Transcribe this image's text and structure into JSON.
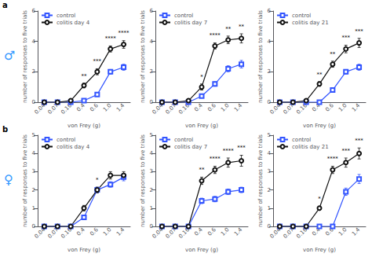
{
  "chart_data": [
    {
      "type": "line",
      "categories": [
        "0.04",
        "0.07",
        "0.16",
        "0.4",
        "0.6",
        "1.0",
        "1.4"
      ],
      "xlabel": "von Frey (g)",
      "ylabel": "number of responses to five trials",
      "ylim": [
        0,
        6
      ],
      "yticks": [
        0,
        2,
        4,
        6
      ],
      "grid": false,
      "legend": "upper left",
      "series": [
        {
          "name": "control",
          "color": "#3355ff",
          "marker": "square",
          "values": [
            0.0,
            0.0,
            0.0,
            0.1,
            0.5,
            2.0,
            2.3
          ],
          "error": [
            0.0,
            0.0,
            0.0,
            0.05,
            0.1,
            0.15,
            0.2
          ]
        },
        {
          "name": "colitis day 4",
          "color": "#111111",
          "marker": "circle",
          "values": [
            0.0,
            0.0,
            0.1,
            1.1,
            2.0,
            3.5,
            3.8
          ],
          "error": [
            0.0,
            0.0,
            0.05,
            0.15,
            0.2,
            0.2,
            0.25
          ]
        }
      ],
      "annotations": [
        {
          "text": "a"
        },
        {
          "text": "♂",
          "color": "#3399ff"
        },
        {
          "x": "0.4",
          "series": "colitis day 4",
          "text": "**"
        },
        {
          "x": "0.6",
          "series": "colitis day 4",
          "text": "***"
        },
        {
          "x": "1.0",
          "series": "colitis day 4",
          "text": "****"
        },
        {
          "x": "1.4",
          "series": "colitis day 4",
          "text": "****"
        }
      ]
    },
    {
      "type": "line",
      "categories": [
        "0.04",
        "0.07",
        "0.16",
        "0.4",
        "0.6",
        "1.0",
        "1.4"
      ],
      "xlabel": "von Frey (g)",
      "ylabel": "number of responses to five trials",
      "ylim": [
        0,
        6
      ],
      "yticks": [
        0,
        2,
        4,
        6
      ],
      "grid": false,
      "legend": "upper left",
      "series": [
        {
          "name": "control",
          "color": "#3355ff",
          "marker": "square",
          "values": [
            0.0,
            0.0,
            0.0,
            0.4,
            1.2,
            2.2,
            2.5
          ],
          "error": [
            0.0,
            0.0,
            0.0,
            0.1,
            0.15,
            0.2,
            0.25
          ]
        },
        {
          "name": "colitis day 7",
          "color": "#111111",
          "marker": "circle",
          "values": [
            0.0,
            0.0,
            0.1,
            1.0,
            3.7,
            4.1,
            4.2
          ],
          "error": [
            0.0,
            0.0,
            0.05,
            0.2,
            0.2,
            0.25,
            0.3
          ]
        }
      ],
      "annotations": [
        {
          "x": "0.4",
          "series": "colitis day 7",
          "text": "*"
        },
        {
          "x": "0.6",
          "series": "colitis day 7",
          "text": "****"
        },
        {
          "x": "1.0",
          "series": "colitis day 7",
          "text": "**"
        },
        {
          "x": "1.4",
          "series": "colitis day 7",
          "text": "**"
        }
      ]
    },
    {
      "type": "line",
      "categories": [
        "0.04",
        "0.07",
        "0.16",
        "0.4",
        "0.6",
        "1.0",
        "1.4"
      ],
      "xlabel": "von Frey (g)",
      "ylabel": "number of responses to five trials",
      "ylim": [
        0,
        6
      ],
      "yticks": [
        0,
        2,
        4,
        6
      ],
      "grid": false,
      "legend": "upper left",
      "series": [
        {
          "name": "control",
          "color": "#3355ff",
          "marker": "square",
          "values": [
            0.0,
            0.0,
            0.0,
            0.0,
            0.8,
            2.0,
            2.3
          ],
          "error": [
            0.0,
            0.0,
            0.0,
            0.0,
            0.1,
            0.15,
            0.2
          ]
        },
        {
          "name": "colitis day 21",
          "color": "#111111",
          "marker": "circle",
          "values": [
            0.0,
            0.0,
            0.1,
            1.2,
            2.5,
            3.5,
            3.9
          ],
          "error": [
            0.0,
            0.0,
            0.05,
            0.15,
            0.2,
            0.25,
            0.3
          ]
        }
      ],
      "annotations": [
        {
          "x": "0.4",
          "series": "colitis day 21",
          "text": "**"
        },
        {
          "x": "0.6",
          "series": "colitis day 21",
          "text": "**"
        },
        {
          "x": "1.0",
          "series": "colitis day 21",
          "text": "***"
        },
        {
          "x": "1.4",
          "series": "colitis day 21",
          "text": "***"
        }
      ]
    },
    {
      "type": "line",
      "categories": [
        "0.04",
        "0.07",
        "0.16",
        "0.4",
        "0.6",
        "1.0",
        "1.4"
      ],
      "xlabel": "von Frey (g)",
      "ylabel": "number of responses to five trials",
      "ylim": [
        0,
        5
      ],
      "yticks": [
        0,
        1,
        2,
        3,
        4,
        5
      ],
      "grid": false,
      "legend": "upper left",
      "series": [
        {
          "name": "control",
          "color": "#3355ff",
          "marker": "square",
          "values": [
            0.0,
            0.0,
            0.0,
            0.5,
            2.0,
            2.3,
            2.7
          ],
          "error": [
            0.0,
            0.0,
            0.0,
            0.1,
            0.15,
            0.15,
            0.2
          ]
        },
        {
          "name": "colitis day 4",
          "color": "#111111",
          "marker": "circle",
          "values": [
            0.0,
            0.0,
            0.0,
            1.0,
            2.0,
            2.8,
            2.8
          ],
          "error": [
            0.0,
            0.0,
            0.0,
            0.15,
            0.15,
            0.2,
            0.2
          ]
        }
      ],
      "annotations": [
        {
          "text": "b"
        },
        {
          "text": "♀",
          "color": "#3399ff"
        },
        {
          "x": "0.6",
          "series": "colitis day 4",
          "text": "*"
        }
      ]
    },
    {
      "type": "line",
      "categories": [
        "0.04",
        "0.07",
        "0.16",
        "0.4",
        "0.6",
        "1.0",
        "1.4"
      ],
      "xlabel": "von Frey (g)",
      "ylabel": "number of responses to five trials",
      "ylim": [
        0,
        5
      ],
      "yticks": [
        0,
        1,
        2,
        3,
        4,
        5
      ],
      "grid": false,
      "legend": "upper left",
      "series": [
        {
          "name": "control",
          "color": "#3355ff",
          "marker": "square",
          "values": [
            0.0,
            0.0,
            0.0,
            1.4,
            1.5,
            1.9,
            2.0
          ],
          "error": [
            0.0,
            0.0,
            0.0,
            0.15,
            0.15,
            0.15,
            0.15
          ]
        },
        {
          "name": "colitis day 7",
          "color": "#111111",
          "marker": "circle",
          "values": [
            0.0,
            0.0,
            0.0,
            2.5,
            3.1,
            3.5,
            3.6
          ],
          "error": [
            0.0,
            0.0,
            0.0,
            0.2,
            0.2,
            0.25,
            0.3
          ]
        }
      ],
      "annotations": [
        {
          "x": "0.4",
          "series": "colitis day 7",
          "text": "**"
        },
        {
          "x": "0.6",
          "series": "colitis day 7",
          "text": "****"
        },
        {
          "x": "1.0",
          "series": "colitis day 7",
          "text": "****"
        },
        {
          "x": "1.4",
          "series": "colitis day 7",
          "text": "***"
        }
      ]
    },
    {
      "type": "line",
      "categories": [
        "0.04",
        "0.07",
        "0.16",
        "0.4",
        "0.6",
        "1.0",
        "1.4"
      ],
      "xlabel": "von Frey (g)",
      "ylabel": "number of responses to five trials",
      "ylim": [
        0,
        5
      ],
      "yticks": [
        0,
        1,
        2,
        3,
        4,
        5
      ],
      "grid": false,
      "legend": "upper left",
      "series": [
        {
          "name": "control",
          "color": "#3355ff",
          "marker": "square",
          "values": [
            0.0,
            0.0,
            0.0,
            0.0,
            0.0,
            1.9,
            2.6
          ],
          "error": [
            0.0,
            0.0,
            0.0,
            0.0,
            0.0,
            0.2,
            0.25
          ]
        },
        {
          "name": "colitis day 21",
          "color": "#111111",
          "marker": "circle",
          "values": [
            0.0,
            0.0,
            0.0,
            1.0,
            3.1,
            3.5,
            4.0
          ],
          "error": [
            0.0,
            0.0,
            0.0,
            0.1,
            0.2,
            0.25,
            0.3
          ]
        }
      ],
      "annotations": [
        {
          "x": "0.4",
          "series": "colitis day 21",
          "text": "*"
        },
        {
          "x": "0.6",
          "series": "colitis day 21",
          "text": "****"
        },
        {
          "x": "1.0",
          "series": "colitis day 21",
          "text": "***"
        },
        {
          "x": "1.4",
          "series": "colitis day 21",
          "text": "***"
        }
      ]
    }
  ]
}
